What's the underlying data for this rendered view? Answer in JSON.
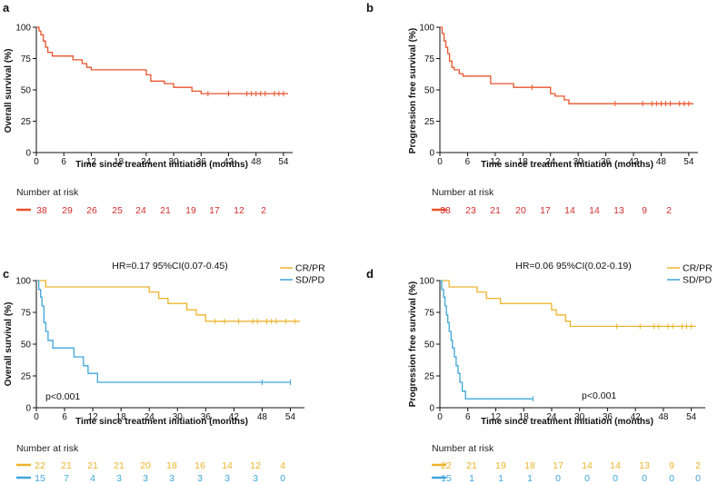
{
  "colors": {
    "all": "#E8542C",
    "crpr": "#EDB42B",
    "sdpd": "#3FA6D9",
    "risk_red": "#D32F2F",
    "axis": "#111111"
  },
  "chart_data": [
    {
      "panel": "a",
      "type": "line",
      "title": "",
      "xlabel": "Time since treatment initiation (months)",
      "ylabel": "Overall survival (%)",
      "xlim": [
        0,
        56
      ],
      "ylim": [
        0,
        100
      ],
      "xticks": [
        0,
        6,
        12,
        18,
        24,
        30,
        36,
        42,
        48,
        54
      ],
      "yticks": [
        0,
        25,
        50,
        75,
        100
      ],
      "risk_label": "Number at risk",
      "series": [
        {
          "name": "All",
          "color_key": "all",
          "steps": [
            [
              0,
              100
            ],
            [
              0.6,
              97
            ],
            [
              1.0,
              94
            ],
            [
              1.5,
              89
            ],
            [
              2.0,
              84
            ],
            [
              2.5,
              80
            ],
            [
              3.5,
              77
            ],
            [
              8,
              74
            ],
            [
              10,
              71
            ],
            [
              11,
              68
            ],
            [
              12,
              66
            ],
            [
              24,
              62
            ],
            [
              25,
              57
            ],
            [
              28,
              55
            ],
            [
              30,
              52
            ],
            [
              34,
              49
            ],
            [
              36,
              47
            ],
            [
              55,
              47
            ]
          ],
          "censors": [
            37.5,
            42,
            46,
            47,
            48,
            49,
            50,
            52,
            53,
            54
          ],
          "risk": [
            "38",
            "29",
            "26",
            "25",
            "24",
            "21",
            "19",
            "17",
            "12",
            "2"
          ]
        }
      ]
    },
    {
      "panel": "b",
      "type": "line",
      "title": "",
      "xlabel": "Time since treatment initiation (months)",
      "ylabel": "Progression free survival (%)",
      "xlim": [
        0,
        56
      ],
      "ylim": [
        0,
        100
      ],
      "xticks": [
        0,
        6,
        12,
        18,
        24,
        30,
        36,
        42,
        48,
        54
      ],
      "yticks": [
        0,
        25,
        50,
        75,
        100
      ],
      "risk_label": "Number at risk",
      "series": [
        {
          "name": "All",
          "color_key": "all",
          "steps": [
            [
              0,
              100
            ],
            [
              0.5,
              95
            ],
            [
              0.9,
              89
            ],
            [
              1.3,
              84
            ],
            [
              1.7,
              79
            ],
            [
              2.1,
              73
            ],
            [
              2.6,
              68
            ],
            [
              3.1,
              66
            ],
            [
              4.2,
              63
            ],
            [
              5,
              61
            ],
            [
              11,
              55
            ],
            [
              16,
              52
            ],
            [
              24,
              47
            ],
            [
              25,
              45
            ],
            [
              27,
              42
            ],
            [
              28,
              39
            ],
            [
              55,
              39
            ]
          ],
          "censors": [
            20,
            38,
            44,
            46,
            47,
            48,
            49,
            50,
            52,
            53,
            54
          ],
          "risk": [
            "38",
            "23",
            "21",
            "20",
            "17",
            "14",
            "14",
            "13",
            "9",
            "2"
          ]
        }
      ]
    },
    {
      "panel": "c",
      "type": "line",
      "title": "",
      "annotation": "HR=0.17 95%CI(0.07-0.45)",
      "pvalue": "p<0.001",
      "xlabel": "Time since treatment initiation (months)",
      "ylabel": "Overall survival (%)",
      "xlim": [
        0,
        57
      ],
      "ylim": [
        0,
        100
      ],
      "xticks": [
        0,
        6,
        12,
        18,
        24,
        30,
        36,
        42,
        48,
        54
      ],
      "yticks": [
        0,
        25,
        50,
        75,
        100
      ],
      "risk_label": "Number at risk",
      "series": [
        {
          "name": "CR/PR",
          "color_key": "crpr",
          "steps": [
            [
              0,
              100
            ],
            [
              2,
              95
            ],
            [
              24,
              91
            ],
            [
              26,
              86
            ],
            [
              28,
              82
            ],
            [
              32,
              77
            ],
            [
              34,
              73
            ],
            [
              36,
              68
            ],
            [
              56,
              68
            ]
          ],
          "censors": [
            38,
            40,
            43,
            46,
            47,
            49,
            50,
            51,
            53,
            55
          ],
          "risk": [
            "22",
            "21",
            "21",
            "21",
            "20",
            "18",
            "16",
            "14",
            "12",
            "4"
          ]
        },
        {
          "name": "SD/PD",
          "color_key": "sdpd",
          "steps": [
            [
              0,
              100
            ],
            [
              0.5,
              93
            ],
            [
              0.9,
              87
            ],
            [
              1.2,
              80
            ],
            [
              1.6,
              67
            ],
            [
              2.0,
              60
            ],
            [
              2.5,
              53
            ],
            [
              3.5,
              47
            ],
            [
              8,
              40
            ],
            [
              10,
              33
            ],
            [
              11,
              27
            ],
            [
              13,
              20
            ],
            [
              54,
              20
            ]
          ],
          "censors": [
            48,
            54
          ],
          "risk": [
            "15",
            "7",
            "4",
            "3",
            "3",
            "3",
            "3",
            "3",
            "3",
            "0"
          ]
        }
      ]
    },
    {
      "panel": "d",
      "type": "line",
      "title": "",
      "annotation": "HR=0.06 95%CI(0.02-0.19)",
      "pvalue": "p<0.001",
      "xlabel": "Time since treatment initiation (months)",
      "ylabel": "Progression free survival (%)",
      "xlim": [
        0,
        57
      ],
      "ylim": [
        0,
        100
      ],
      "xticks": [
        0,
        6,
        12,
        18,
        24,
        30,
        36,
        42,
        48,
        54
      ],
      "yticks": [
        0,
        25,
        50,
        75,
        100
      ],
      "risk_label": "Number at risk",
      "series": [
        {
          "name": "CR/PR",
          "color_key": "crpr",
          "steps": [
            [
              0,
              100
            ],
            [
              2,
              95
            ],
            [
              8,
              91
            ],
            [
              10,
              86
            ],
            [
              13,
              82
            ],
            [
              24,
              77
            ],
            [
              25,
              73
            ],
            [
              27,
              68
            ],
            [
              28,
              64
            ],
            [
              55,
              64
            ]
          ],
          "censors": [
            38,
            43,
            46,
            47,
            49,
            50,
            52,
            53,
            54
          ],
          "risk": [
            "22",
            "21",
            "19",
            "18",
            "17",
            "14",
            "14",
            "13",
            "9",
            "2"
          ]
        },
        {
          "name": "SD/PD",
          "color_key": "sdpd",
          "steps": [
            [
              0,
              100
            ],
            [
              0.4,
              93
            ],
            [
              0.8,
              87
            ],
            [
              1.1,
              80
            ],
            [
              1.4,
              73
            ],
            [
              1.7,
              67
            ],
            [
              2.0,
              60
            ],
            [
              2.4,
              53
            ],
            [
              2.7,
              47
            ],
            [
              3.1,
              40
            ],
            [
              3.5,
              33
            ],
            [
              3.9,
              27
            ],
            [
              4.3,
              20
            ],
            [
              4.8,
              13
            ],
            [
              5.5,
              7
            ],
            [
              20,
              7
            ]
          ],
          "censors": [
            20
          ],
          "risk": [
            "15",
            "1",
            "1",
            "1",
            "0",
            "0",
            "0",
            "0",
            "0",
            "0"
          ]
        }
      ]
    }
  ]
}
